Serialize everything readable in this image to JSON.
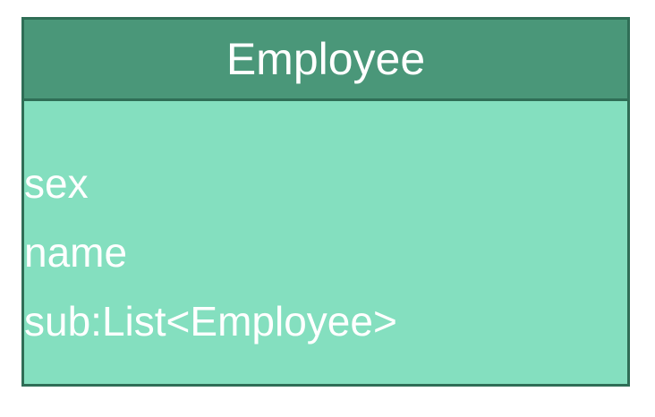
{
  "class": {
    "name": "Employee",
    "attributes": [
      "sex",
      "name",
      "sub:List<Employee>"
    ],
    "colors": {
      "header_fill": "#4a9779",
      "body_fill": "#84dfbf",
      "border": "#2f6e56",
      "text": "#ffffff"
    }
  }
}
